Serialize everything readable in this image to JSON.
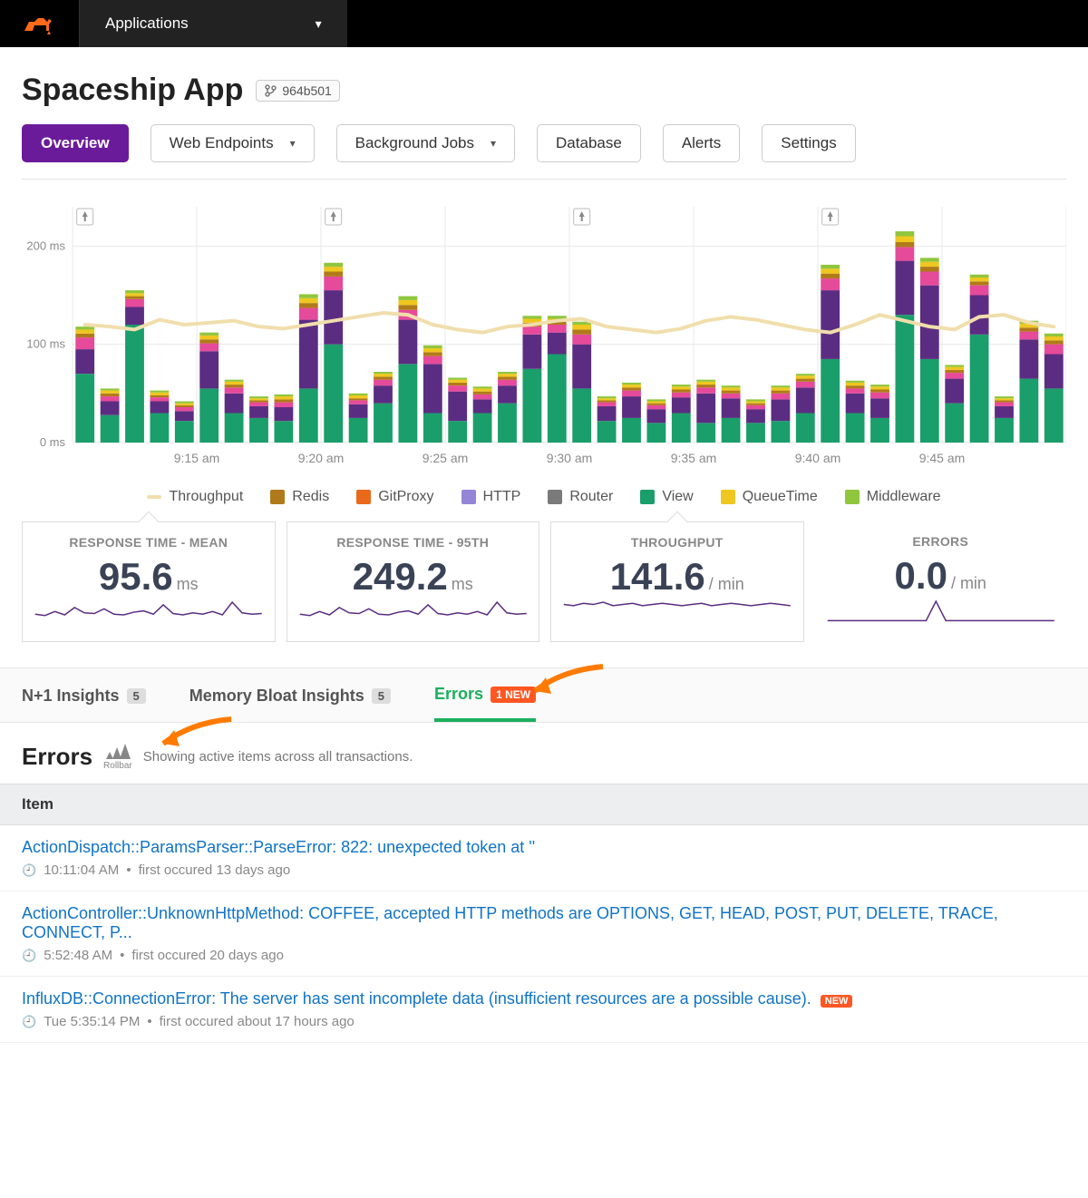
{
  "topbar": {
    "nav_label": "Applications"
  },
  "header": {
    "app_title": "Spaceship App",
    "commit": "964b501"
  },
  "tabs": {
    "overview": "Overview",
    "web_endpoints": "Web Endpoints",
    "background_jobs": "Background Jobs",
    "database": "Database",
    "alerts": "Alerts",
    "settings": "Settings"
  },
  "chart": {
    "type": "stacked-bar-with-line",
    "y_axis": {
      "ticks": [
        0,
        100,
        200
      ],
      "unit": "ms",
      "max": 240
    },
    "x_labels": [
      "9:15 am",
      "9:20 am",
      "9:25 am",
      "9:30 am",
      "9:35 am",
      "9:40 am",
      "9:45 am"
    ],
    "rocket_markers_at": [
      0,
      10,
      20,
      30
    ],
    "colors": {
      "View": "#1a9e6b",
      "HTTP": "#9585d6",
      "Router": "#7a7a7a",
      "Redis": "#b07a1a",
      "GitProxy": "#e86a1a",
      "QueueTime": "#efc71f",
      "Middleware": "#8fc63d",
      "Other": "#5b2d82",
      "Pink": "#e64a9a",
      "Throughput": "#f0deac",
      "grid": "#e9e9e9",
      "axis_text": "#8a8a8a"
    },
    "bars": [
      {
        "View": 70,
        "Other": 25,
        "Pink": 12,
        "Redis": 4,
        "QueueTime": 4,
        "Middleware": 3
      },
      {
        "View": 28,
        "Other": 14,
        "Pink": 5,
        "Redis": 3,
        "QueueTime": 3,
        "Middleware": 2
      },
      {
        "View": 120,
        "Other": 18,
        "Pink": 8,
        "Redis": 3,
        "QueueTime": 3,
        "Middleware": 3
      },
      {
        "View": 30,
        "Other": 12,
        "Pink": 4,
        "Redis": 2,
        "QueueTime": 3,
        "Middleware": 2
      },
      {
        "View": 22,
        "Other": 10,
        "Pink": 4,
        "Redis": 2,
        "QueueTime": 2,
        "Middleware": 2
      },
      {
        "View": 55,
        "Other": 38,
        "Pink": 8,
        "Redis": 4,
        "QueueTime": 4,
        "Middleware": 3
      },
      {
        "View": 30,
        "Other": 20,
        "Pink": 6,
        "Redis": 3,
        "QueueTime": 3,
        "Middleware": 2
      },
      {
        "View": 25,
        "Other": 12,
        "Pink": 4,
        "Redis": 2,
        "QueueTime": 2,
        "Middleware": 2
      },
      {
        "View": 22,
        "Other": 14,
        "Pink": 5,
        "Redis": 3,
        "QueueTime": 3,
        "Middleware": 2
      },
      {
        "View": 55,
        "Other": 70,
        "Pink": 12,
        "Redis": 5,
        "QueueTime": 5,
        "Middleware": 4
      },
      {
        "View": 100,
        "Other": 55,
        "Pink": 14,
        "Redis": 5,
        "QueueTime": 5,
        "Middleware": 4
      },
      {
        "View": 25,
        "Other": 14,
        "Pink": 4,
        "Redis": 2,
        "QueueTime": 3,
        "Middleware": 2
      },
      {
        "View": 40,
        "Other": 18,
        "Pink": 6,
        "Redis": 3,
        "QueueTime": 3,
        "Middleware": 2
      },
      {
        "View": 80,
        "Other": 45,
        "Pink": 10,
        "Redis": 5,
        "QueueTime": 5,
        "Middleware": 4
      },
      {
        "View": 30,
        "Other": 50,
        "Pink": 8,
        "Redis": 4,
        "QueueTime": 4,
        "Middleware": 3
      },
      {
        "View": 22,
        "Other": 30,
        "Pink": 6,
        "Redis": 3,
        "QueueTime": 3,
        "Middleware": 2
      },
      {
        "View": 30,
        "Other": 14,
        "Pink": 5,
        "Redis": 3,
        "QueueTime": 3,
        "Middleware": 2
      },
      {
        "View": 40,
        "Other": 18,
        "Pink": 6,
        "Redis": 3,
        "QueueTime": 3,
        "Middleware": 2
      },
      {
        "View": 75,
        "Other": 35,
        "Pink": 8,
        "Redis": 4,
        "QueueTime": 4,
        "Middleware": 3
      },
      {
        "View": 90,
        "Other": 22,
        "Pink": 8,
        "Redis": 3,
        "QueueTime": 3,
        "Middleware": 3
      },
      {
        "View": 55,
        "Other": 45,
        "Pink": 10,
        "Redis": 5,
        "QueueTime": 5,
        "Middleware": 3
      },
      {
        "View": 22,
        "Other": 15,
        "Pink": 4,
        "Redis": 2,
        "QueueTime": 2,
        "Middleware": 2
      },
      {
        "View": 25,
        "Other": 22,
        "Pink": 6,
        "Redis": 3,
        "QueueTime": 3,
        "Middleware": 2
      },
      {
        "View": 20,
        "Other": 14,
        "Pink": 4,
        "Redis": 2,
        "QueueTime": 2,
        "Middleware": 2
      },
      {
        "View": 30,
        "Other": 16,
        "Pink": 5,
        "Redis": 3,
        "QueueTime": 3,
        "Middleware": 2
      },
      {
        "View": 20,
        "Other": 30,
        "Pink": 6,
        "Redis": 3,
        "QueueTime": 3,
        "Middleware": 2
      },
      {
        "View": 25,
        "Other": 20,
        "Pink": 5,
        "Redis": 3,
        "QueueTime": 3,
        "Middleware": 2
      },
      {
        "View": 20,
        "Other": 14,
        "Pink": 4,
        "Redis": 2,
        "QueueTime": 2,
        "Middleware": 2
      },
      {
        "View": 22,
        "Other": 22,
        "Pink": 6,
        "Redis": 3,
        "QueueTime": 3,
        "Middleware": 2
      },
      {
        "View": 30,
        "Other": 26,
        "Pink": 6,
        "Redis": 3,
        "QueueTime": 3,
        "Middleware": 2
      },
      {
        "View": 85,
        "Other": 70,
        "Pink": 12,
        "Redis": 5,
        "QueueTime": 5,
        "Middleware": 4
      },
      {
        "View": 30,
        "Other": 20,
        "Pink": 5,
        "Redis": 3,
        "QueueTime": 3,
        "Middleware": 2
      },
      {
        "View": 25,
        "Other": 20,
        "Pink": 6,
        "Redis": 3,
        "QueueTime": 3,
        "Middleware": 2
      },
      {
        "View": 130,
        "Other": 55,
        "Pink": 14,
        "Redis": 5,
        "QueueTime": 6,
        "Middleware": 5
      },
      {
        "View": 85,
        "Other": 75,
        "Pink": 14,
        "Redis": 5,
        "QueueTime": 5,
        "Middleware": 4
      },
      {
        "View": 40,
        "Other": 25,
        "Pink": 6,
        "Redis": 3,
        "QueueTime": 3,
        "Middleware": 2
      },
      {
        "View": 110,
        "Other": 40,
        "Pink": 10,
        "Redis": 4,
        "QueueTime": 4,
        "Middleware": 3
      },
      {
        "View": 25,
        "Other": 12,
        "Pink": 4,
        "Redis": 2,
        "QueueTime": 2,
        "Middleware": 2
      },
      {
        "View": 65,
        "Other": 40,
        "Pink": 8,
        "Redis": 4,
        "QueueTime": 4,
        "Middleware": 3
      },
      {
        "View": 55,
        "Other": 35,
        "Pink": 10,
        "Redis": 4,
        "QueueTime": 4,
        "Middleware": 3
      }
    ],
    "throughput_line": [
      120,
      118,
      115,
      125,
      120,
      122,
      124,
      118,
      116,
      120,
      124,
      128,
      132,
      130,
      120,
      115,
      112,
      118,
      120,
      124,
      126,
      118,
      115,
      112,
      116,
      124,
      128,
      125,
      120,
      115,
      112,
      120,
      130,
      124,
      118,
      115,
      128,
      130,
      122,
      118
    ],
    "legend": [
      {
        "label": "Throughput",
        "key": "Throughput",
        "type": "line"
      },
      {
        "label": "Redis",
        "key": "Redis"
      },
      {
        "label": "GitProxy",
        "key": "GitProxy"
      },
      {
        "label": "HTTP",
        "key": "HTTP"
      },
      {
        "label": "Router",
        "key": "Router"
      },
      {
        "label": "View",
        "key": "View"
      },
      {
        "label": "QueueTime",
        "key": "QueueTime"
      },
      {
        "label": "Middleware",
        "key": "Middleware"
      }
    ]
  },
  "stats": [
    {
      "title": "RESPONSE TIME - MEAN",
      "value": "95.6",
      "unit": "ms",
      "border": true,
      "notch": true,
      "spark": [
        20,
        18,
        24,
        19,
        30,
        22,
        21,
        28,
        20,
        19,
        23,
        25,
        20,
        34,
        21,
        19,
        22,
        20,
        24,
        19,
        38,
        22,
        20,
        21
      ]
    },
    {
      "title": "RESPONSE TIME - 95TH",
      "value": "249.2",
      "unit": "ms",
      "border": true,
      "notch": false,
      "spark": [
        20,
        18,
        24,
        19,
        30,
        22,
        21,
        28,
        20,
        19,
        23,
        25,
        20,
        34,
        21,
        19,
        22,
        20,
        24,
        19,
        38,
        22,
        20,
        21
      ]
    },
    {
      "title": "THROUGHPUT",
      "value": "141.6",
      "unit": "/ min",
      "border": true,
      "notch": true,
      "spark": [
        20,
        19,
        21,
        20,
        22,
        19,
        20,
        21,
        19,
        20,
        21,
        20,
        19,
        20,
        21,
        19,
        20,
        21,
        20,
        19,
        20,
        21,
        20,
        19
      ]
    },
    {
      "title": "ERRORS",
      "value": "0.0",
      "unit": "/ min",
      "border": false,
      "notch": false,
      "spark": [
        10,
        10,
        10,
        10,
        10,
        10,
        10,
        10,
        10,
        10,
        10,
        42,
        10,
        10,
        10,
        10,
        10,
        10,
        10,
        10,
        10,
        10,
        10,
        10
      ]
    }
  ],
  "insights": {
    "n1": {
      "label": "N+1 Insights",
      "count": "5"
    },
    "memory": {
      "label": "Memory Bloat Insights",
      "count": "5"
    },
    "errors": {
      "label": "Errors",
      "badge": "1 NEW"
    }
  },
  "errors_section": {
    "title": "Errors",
    "provider": "Rollbar",
    "subtitle": "Showing active items across all transactions.",
    "column": "Item",
    "rows": [
      {
        "title": "ActionDispatch::ParamsParser::ParseError: 822: unexpected token at ''",
        "time": "10:11:04 AM",
        "note": "first occured 13 days ago",
        "new": false
      },
      {
        "title": "ActionController::UnknownHttpMethod: COFFEE, accepted HTTP methods are OPTIONS, GET, HEAD, POST, PUT, DELETE, TRACE, CONNECT, P...",
        "time": "5:52:48 AM",
        "note": "first occured 20 days ago",
        "new": false
      },
      {
        "title": "InfluxDB::ConnectionError: The server has sent incomplete data (insufficient resources are a possible cause).",
        "time": "Tue 5:35:14 PM",
        "note": "first occured about 17 hours ago",
        "new": true
      }
    ]
  }
}
